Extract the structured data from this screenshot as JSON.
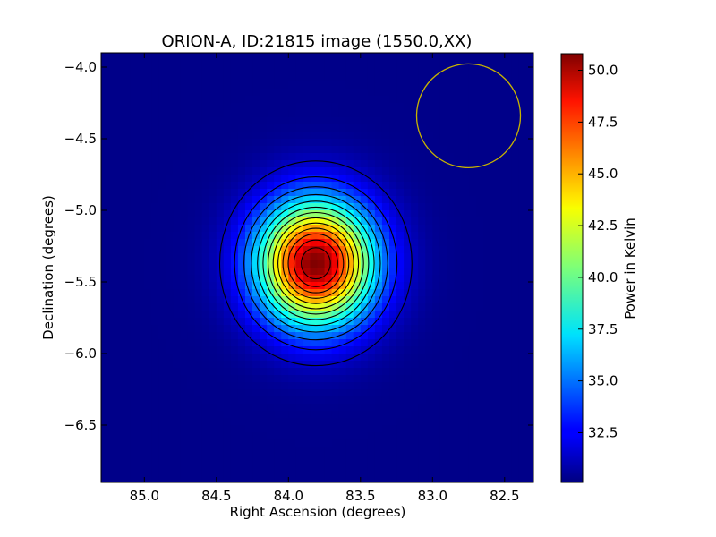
{
  "chart_data": {
    "type": "heatmap",
    "title": "ORION-A, ID:21815 image (1550.0,XX)",
    "xlabel": "Right Ascension (degrees)",
    "ylabel": "Declination (degrees)",
    "colorbar_label": "Power in Kelvin",
    "xlim": [
      85.3,
      82.3
    ],
    "ylim": [
      -6.9,
      -3.9
    ],
    "x_ticks": [
      85.0,
      84.5,
      84.0,
      83.5,
      83.0,
      82.5
    ],
    "x_tick_labels": [
      "85.0",
      "84.5",
      "84.0",
      "83.5",
      "83.0",
      "82.5"
    ],
    "y_ticks": [
      -4.0,
      -4.5,
      -5.0,
      -5.5,
      -6.0,
      -6.5
    ],
    "y_tick_labels": [
      "−4.0",
      "−4.5",
      "−5.0",
      "−5.5",
      "−6.0",
      "−6.5"
    ],
    "colorbar_range": [
      30.1,
      50.8
    ],
    "colorbar_ticks": [
      32.5,
      35.0,
      37.5,
      40.0,
      42.5,
      45.0,
      47.5,
      50.0
    ],
    "colorbar_tick_labels": [
      "32.5",
      "35.0",
      "37.5",
      "40.0",
      "42.5",
      "45.0",
      "47.5",
      "50.0"
    ],
    "colormap": "jet",
    "source": {
      "center_ra": 83.81,
      "center_dec": -5.37,
      "peak": 50.8,
      "background": 30.3,
      "sigma_ra_deg": 0.28,
      "sigma_dec_deg": 0.3
    },
    "contour_levels": [
      31.5,
      33.0,
      34.5,
      36.0,
      37.5,
      39.0,
      40.5,
      42.0,
      43.5,
      45.0,
      46.5,
      48.0,
      49.5
    ],
    "beam_circle": {
      "center_ra": 82.75,
      "center_dec": -4.34,
      "radius_deg": 0.36,
      "color": "#c8b400"
    },
    "contour_color": "#000000",
    "grid": false
  }
}
